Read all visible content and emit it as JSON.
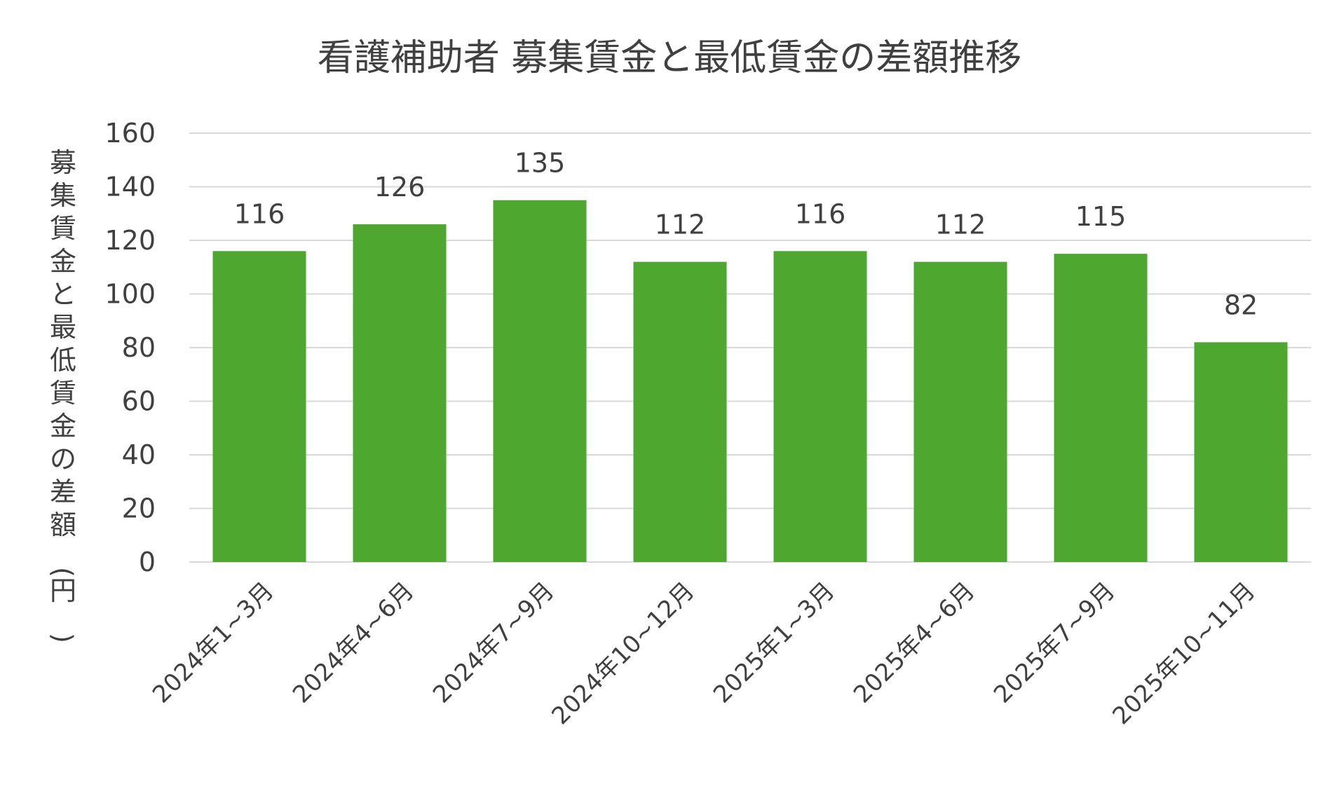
{
  "chart_data": {
    "type": "bar",
    "title": "看護補助者 募集賃金と最低賃金の差額推移",
    "xlabel": "",
    "ylabel": "募集賃金と最低賃金の差額(円)",
    "categories": [
      "2024年1~3月",
      "2024年4~6月",
      "2024年7~9月",
      "2024年10~12月",
      "2025年1~3月",
      "2025年4~6月",
      "2025年7~9月",
      "2025年10~11月"
    ],
    "values": [
      116,
      126,
      135,
      112,
      116,
      112,
      115,
      82
    ],
    "data_labels": [
      "116",
      "126",
      "135",
      "112",
      "116",
      "112",
      "115",
      "82"
    ],
    "ylim": [
      0,
      160
    ],
    "yticks": [
      0,
      20,
      40,
      60,
      80,
      100,
      120,
      140,
      160
    ],
    "grid": true,
    "legend": "none",
    "bar_color": "#4ea72e",
    "grid_color": "#d9d9d9"
  }
}
